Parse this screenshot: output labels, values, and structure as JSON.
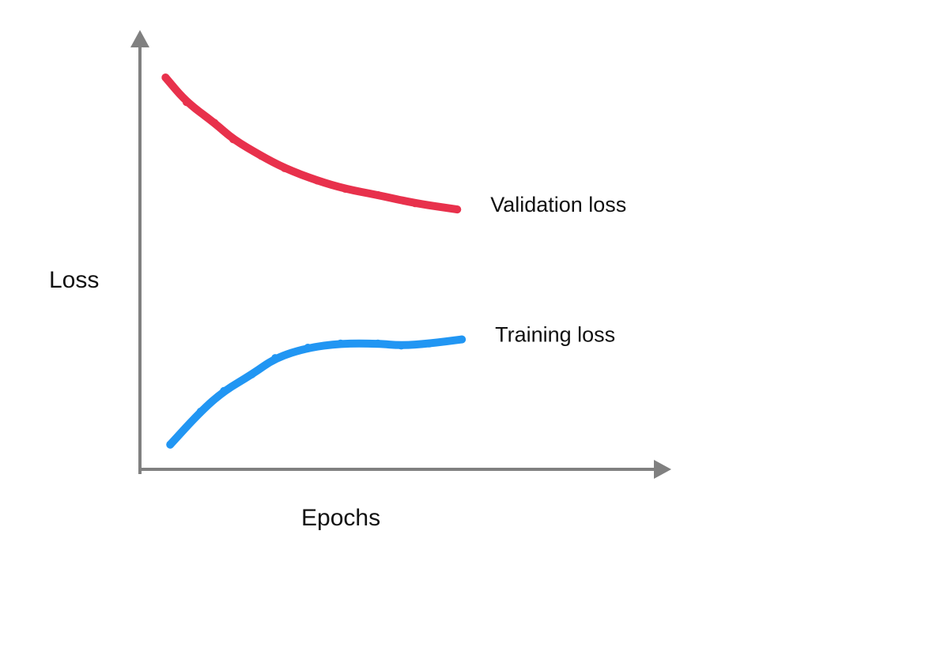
{
  "chart_data": {
    "type": "line",
    "title": "",
    "xlabel": "Epochs",
    "ylabel": "Loss",
    "xlim": [
      0,
      10
    ],
    "ylim": [
      0,
      10
    ],
    "axis_color": "#808080",
    "grid": false,
    "legend": "inline-right",
    "series": [
      {
        "name": "Validation loss",
        "color": "#E8314C",
        "x": [
          0.55,
          1.0,
          1.6,
          2.0,
          2.6,
          3.1,
          3.8,
          4.4,
          5.1,
          5.9,
          6.8
        ],
        "y": [
          9.5,
          8.9,
          8.4,
          8.0,
          7.6,
          7.3,
          7.0,
          6.8,
          6.65,
          6.45,
          6.3
        ]
      },
      {
        "name": "Training loss",
        "color": "#2196F3",
        "x": [
          0.65,
          1.3,
          1.8,
          2.4,
          2.9,
          3.6,
          4.3,
          5.1,
          5.6,
          6.2,
          6.9
        ],
        "y": [
          0.6,
          1.4,
          1.9,
          2.3,
          2.7,
          2.95,
          3.05,
          3.05,
          3.0,
          3.05,
          3.15
        ]
      }
    ]
  }
}
